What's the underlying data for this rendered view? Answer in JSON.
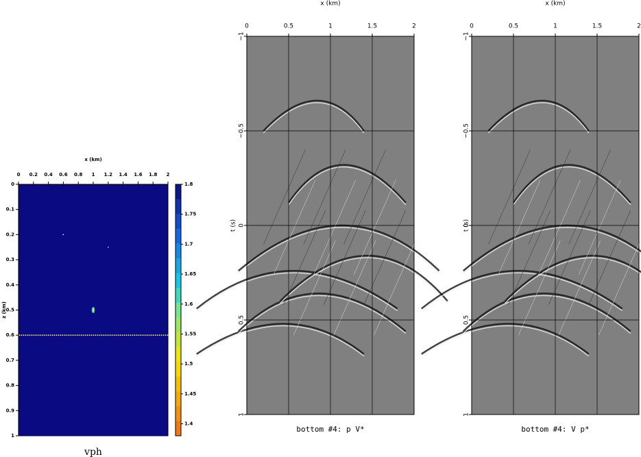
{
  "chart_data": [
    {
      "type": "heatmap",
      "title": "x (km)",
      "ylabel": "z (km)",
      "caption": "vph",
      "xlim": [
        0,
        2
      ],
      "xticks": [
        0,
        0.2,
        0.4,
        0.6,
        0.8,
        1,
        1.2,
        1.4,
        1.6,
        1.8,
        2
      ],
      "ylim": [
        0,
        1
      ],
      "yticks": [
        0,
        0.1,
        0.2,
        0.3,
        0.4,
        0.5,
        0.6,
        0.7,
        0.8,
        0.9,
        1
      ],
      "clim": [
        1.38,
        1.8
      ],
      "cticks": [
        1.4,
        1.45,
        1.5,
        1.55,
        1.6,
        1.65,
        1.7,
        1.75,
        1.8
      ]
    },
    {
      "type": "image",
      "title": "x (km)",
      "ylabel": "t (s)",
      "caption": "bottom #4: p V*",
      "xlim": [
        0,
        2
      ],
      "xticks": [
        0,
        0.5,
        1,
        1.5,
        2
      ],
      "ylim": [
        -1,
        1
      ],
      "yticks": [
        {
          "value": -1,
          "label": "−1"
        },
        {
          "value": -0.5,
          "label": "−0.5"
        },
        0,
        0.5,
        1
      ],
      "grid": true
    },
    {
      "type": "image",
      "title": "x (km)",
      "ylabel": "t (s)",
      "caption": "bottom #4: V p*",
      "xlim": [
        0,
        2
      ],
      "xticks": [
        0,
        0.5,
        1,
        1.5,
        2
      ],
      "ylim": [
        -1,
        1
      ],
      "yticks": [
        {
          "value": -1,
          "label": "−1"
        },
        {
          "value": -0.5,
          "label": "−0.5"
        },
        0,
        0.5,
        1
      ],
      "grid": true
    }
  ]
}
